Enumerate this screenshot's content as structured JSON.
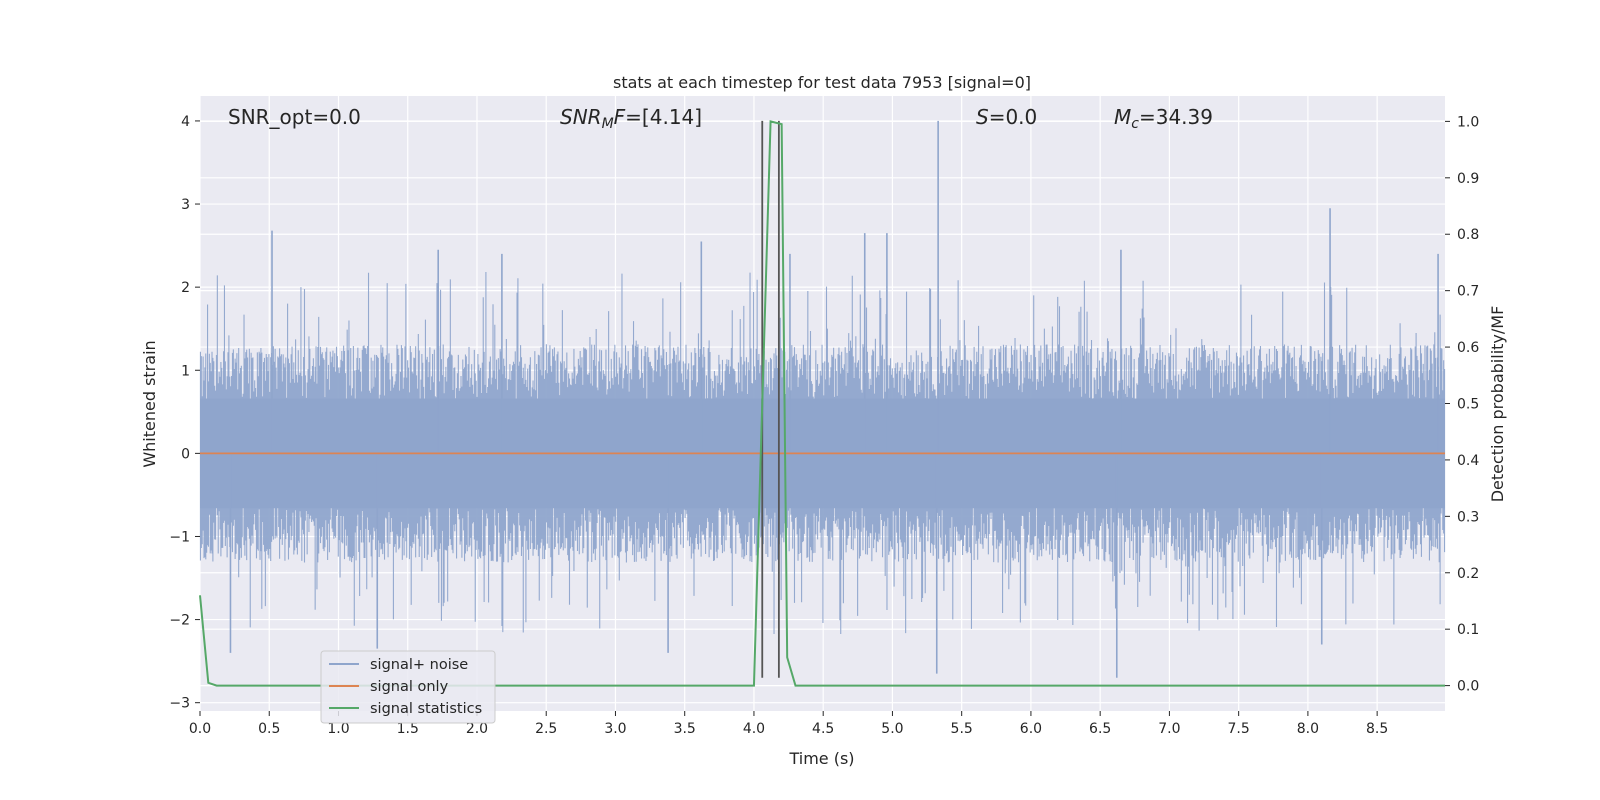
{
  "chart_data": {
    "type": "line",
    "title": "stats at each timestep for test data 7953 [signal=0]",
    "xlabel": "Time (s)",
    "ylabel": "Whitened strain",
    "ylabel_right": "Detection probability/MF",
    "xlim": [
      0.0,
      8.99
    ],
    "ylim": [
      -3.1,
      4.3
    ],
    "ylim_right": [
      -0.045,
      1.045
    ],
    "xticks": [
      "0.0",
      "0.5",
      "1.0",
      "1.5",
      "2.0",
      "2.5",
      "3.0",
      "3.5",
      "4.0",
      "4.5",
      "5.0",
      "5.5",
      "6.0",
      "6.5",
      "7.0",
      "7.5",
      "8.0",
      "8.5"
    ],
    "yticks": [
      "−3",
      "−2",
      "−1",
      "0",
      "1",
      "2",
      "3",
      "4"
    ],
    "yticks_right": [
      "0.0",
      "0.1",
      "0.2",
      "0.3",
      "0.4",
      "0.5",
      "0.6",
      "0.7",
      "0.8",
      "0.9",
      "1.0"
    ],
    "grid": true,
    "legend_position": "lower-left",
    "annotations": {
      "snr_opt": "SNR_opt=0.0",
      "snr_mf": "=[4.14]",
      "snr_mf_math": "SNR",
      "snr_mf_sub": "M",
      "snr_mf_tail": "F",
      "s_label": "S",
      "s_value": "=0.0",
      "mc_label": "M",
      "mc_sub": "c",
      "mc_value": "=34.39"
    },
    "series": [
      {
        "name": "signal+ noise",
        "color": "#8fa5cc",
        "axis": "left",
        "kind": "noise",
        "envelope": [
          1.35,
          -1.35
        ],
        "spikes": [
          [
            0.52,
            2.68
          ],
          [
            1.72,
            2.45
          ],
          [
            2.18,
            2.4
          ],
          [
            3.62,
            2.55
          ],
          [
            4.26,
            2.4
          ],
          [
            4.8,
            2.65
          ],
          [
            4.96,
            2.65
          ],
          [
            5.33,
            4.0
          ],
          [
            6.65,
            2.45
          ],
          [
            8.16,
            2.95
          ],
          [
            8.94,
            2.4
          ],
          [
            0.22,
            -2.4
          ],
          [
            1.28,
            -2.35
          ],
          [
            3.38,
            -2.4
          ],
          [
            5.32,
            -2.65
          ],
          [
            6.62,
            -2.7
          ],
          [
            8.1,
            -2.3
          ]
        ]
      },
      {
        "name": "signal only",
        "color": "#dd8452",
        "axis": "left",
        "kind": "flat",
        "value": 0
      },
      {
        "name": "signal statistics",
        "color": "#55a868",
        "axis": "right",
        "kind": "line",
        "x": [
          0.0,
          0.06,
          0.12,
          4.0,
          4.12,
          4.2,
          4.24,
          4.3,
          8.99
        ],
        "y": [
          0.16,
          0.005,
          0.0,
          0.0,
          1.0,
          0.995,
          0.05,
          0.0,
          0.0
        ]
      }
    ],
    "markers": {
      "color": "#555555",
      "x": [
        4.06,
        4.18
      ],
      "y_top": 4.0,
      "y_bottom": -2.7
    }
  }
}
